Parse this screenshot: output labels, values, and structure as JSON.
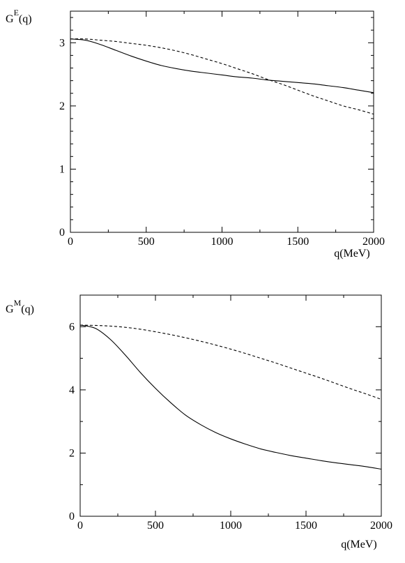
{
  "chart_data": [
    {
      "type": "line",
      "ylabel_main": "G",
      "ylabel_sup": "E",
      "ylabel_tail": "(q)",
      "xlabel": "q(MeV)",
      "xlim": [
        0,
        2000
      ],
      "ylim": [
        0,
        3.5
      ],
      "x_ticks": [
        0,
        500,
        1000,
        1500,
        2000
      ],
      "y_ticks": [
        0,
        1,
        2,
        3
      ],
      "grid": false,
      "series": [
        {
          "style": "solid",
          "x": [
            0,
            100,
            200,
            300,
            400,
            500,
            600,
            700,
            800,
            900,
            1000,
            1100,
            1200,
            1300,
            1400,
            1500,
            1600,
            1700,
            1800,
            1900,
            2000
          ],
          "y": [
            3.06,
            3.04,
            2.97,
            2.88,
            2.79,
            2.71,
            2.64,
            2.59,
            2.55,
            2.52,
            2.49,
            2.46,
            2.44,
            2.41,
            2.39,
            2.37,
            2.35,
            2.32,
            2.29,
            2.25,
            2.21
          ]
        },
        {
          "style": "dashed",
          "x": [
            0,
            100,
            200,
            300,
            400,
            500,
            600,
            700,
            800,
            900,
            1000,
            1100,
            1200,
            1300,
            1400,
            1500,
            1600,
            1700,
            1800,
            1900,
            2000
          ],
          "y": [
            3.06,
            3.06,
            3.04,
            3.02,
            2.99,
            2.96,
            2.92,
            2.87,
            2.81,
            2.74,
            2.67,
            2.59,
            2.51,
            2.42,
            2.34,
            2.25,
            2.16,
            2.08,
            2.0,
            1.94,
            1.87
          ]
        }
      ]
    },
    {
      "type": "line",
      "ylabel_main": "G",
      "ylabel_sup": "M",
      "ylabel_tail": "(q)",
      "xlabel": "q(MeV)",
      "xlim": [
        0,
        2000
      ],
      "ylim": [
        0,
        7
      ],
      "x_ticks": [
        0,
        500,
        1000,
        1500,
        2000
      ],
      "y_ticks": [
        0,
        2,
        4,
        6
      ],
      "grid": false,
      "series": [
        {
          "style": "solid",
          "x": [
            0,
            100,
            200,
            300,
            400,
            500,
            600,
            700,
            800,
            900,
            1000,
            1100,
            1200,
            1300,
            1400,
            1500,
            1600,
            1700,
            1800,
            1900,
            2000
          ],
          "y": [
            6.05,
            5.95,
            5.6,
            5.1,
            4.55,
            4.05,
            3.6,
            3.2,
            2.9,
            2.65,
            2.45,
            2.28,
            2.13,
            2.02,
            1.92,
            1.84,
            1.76,
            1.69,
            1.63,
            1.57,
            1.49
          ]
        },
        {
          "style": "dashed",
          "x": [
            0,
            100,
            200,
            300,
            400,
            500,
            600,
            700,
            800,
            900,
            1000,
            1100,
            1200,
            1300,
            1400,
            1500,
            1600,
            1700,
            1800,
            1900,
            2000
          ],
          "y": [
            6.05,
            6.04,
            6.02,
            5.98,
            5.92,
            5.84,
            5.75,
            5.65,
            5.54,
            5.42,
            5.29,
            5.15,
            5.0,
            4.85,
            4.69,
            4.53,
            4.37,
            4.2,
            4.03,
            3.87,
            3.7
          ]
        }
      ]
    }
  ]
}
